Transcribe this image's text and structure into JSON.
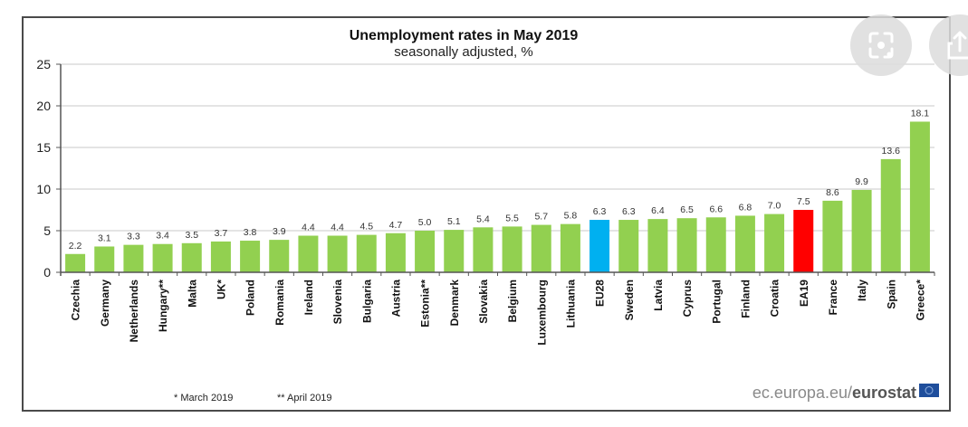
{
  "chart_data": {
    "type": "bar",
    "title": "Unemployment rates in May 2019",
    "subtitle": "seasonally adjusted, %",
    "xlabel": "",
    "ylabel": "",
    "ylim": [
      0,
      25
    ],
    "yticks": [
      "0",
      "5",
      "10",
      "15",
      "20",
      "25"
    ],
    "grid": true,
    "categories": [
      "Czechia",
      "Germany",
      "Netherlands",
      "Hungary**",
      "Malta",
      "UK*",
      "Poland",
      "Romania",
      "Ireland",
      "Slovenia",
      "Bulgaria",
      "Austria",
      "Estonia**",
      "Denmark",
      "Slovakia",
      "Belgium",
      "Luxembourg",
      "Lithuania",
      "EU28",
      "Sweden",
      "Latvia",
      "Cyprus",
      "Portugal",
      "Finland",
      "Croatia",
      "EA19",
      "France",
      "Italy",
      "Spain",
      "Greece*"
    ],
    "values": [
      2.2,
      3.1,
      3.3,
      3.4,
      3.5,
      3.7,
      3.8,
      3.9,
      4.4,
      4.4,
      4.5,
      4.7,
      5.0,
      5.1,
      5.4,
      5.5,
      5.7,
      5.8,
      6.3,
      6.3,
      6.4,
      6.5,
      6.6,
      6.8,
      7.0,
      7.5,
      8.6,
      9.9,
      13.6,
      18.1
    ],
    "value_labels": [
      "2.2",
      "3.1",
      "3.3",
      "3.4",
      "3.5",
      "3.7",
      "3.8",
      "3.9",
      "4.4",
      "4.4",
      "4.5",
      "4.7",
      "5.0",
      "5.1",
      "5.4",
      "5.5",
      "5.7",
      "5.8",
      "6.3",
      "6.3",
      "6.4",
      "6.5",
      "6.6",
      "6.8",
      "7.0",
      "7.5",
      "8.6",
      "9.9",
      "13.6",
      "18.1"
    ],
    "colors": {
      "default": "#92d050",
      "EU28": "#00b0f0",
      "EA19": "#ff0000"
    },
    "footnotes": [
      "* March 2019",
      "** April 2019"
    ]
  },
  "source": {
    "prefix": "ec.europa.eu/",
    "brand": "eurostat"
  },
  "overlay": {
    "buttons": [
      "lens-icon",
      "share-icon"
    ]
  }
}
